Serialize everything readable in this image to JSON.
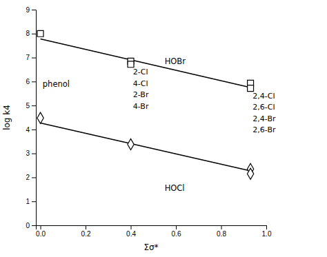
{
  "chart_data": {
    "type": "line",
    "xlabel": "Σσ*",
    "ylabel": "log k4",
    "xlim": [
      -0.02,
      1.0
    ],
    "ylim": [
      0,
      9
    ],
    "xticks": [
      {
        "value": 0,
        "label": "0.0"
      },
      0.2,
      0.4,
      0.6,
      0.8,
      {
        "value": 1.0,
        "label": "1.0"
      }
    ],
    "yticks": [
      0,
      1,
      2,
      3,
      4,
      5,
      6,
      7,
      8,
      9
    ],
    "grid": false,
    "series": [
      {
        "type": "line",
        "line_style": "solid",
        "color": "#000000",
        "x": [
          0.0,
          0.93
        ],
        "values": [
          7.78,
          5.75
        ]
      },
      {
        "type": "line",
        "line_style": "solid",
        "color": "#000000",
        "x": [
          0.0,
          0.93
        ],
        "values": [
          4.27,
          2.27
        ]
      },
      {
        "type": "scatter",
        "marker": "square",
        "color": "#000000",
        "x": [
          0.0,
          0.4,
          0.4,
          0.93,
          0.93
        ],
        "values": [
          8.0,
          6.85,
          6.72,
          5.93,
          5.72
        ]
      },
      {
        "type": "scatter",
        "marker": "diamond",
        "color": "#000000",
        "x": [
          0.0,
          0.4,
          0.93,
          0.93
        ],
        "values": [
          4.48,
          3.38,
          2.35,
          2.15
        ]
      }
    ],
    "annotations": [
      {
        "text": "phenol",
        "x": 0.01,
        "y": 6.05
      },
      {
        "text": "HOBr",
        "x": 0.55,
        "y": 6.85
      },
      {
        "text": "HOCl",
        "x": 0.55,
        "y": 1.55
      },
      {
        "text": "2-Cl\n4-Cl\n2-Br\n4-Br",
        "x": 0.41,
        "y": 6.55
      },
      {
        "text": "2,4-Cl\n2,6-Cl\n2,4-Br\n2,6-Br",
        "x": 0.94,
        "y": 5.55
      }
    ]
  }
}
